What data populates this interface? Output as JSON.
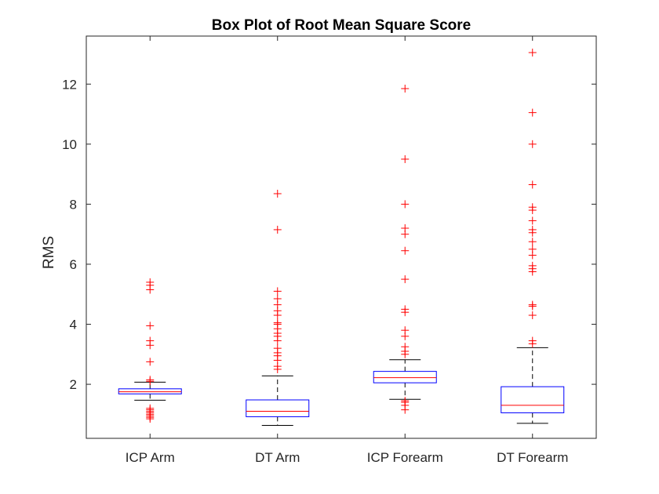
{
  "chart_data": {
    "type": "box",
    "title": "Box Plot of Root Mean Square Score",
    "xlabel": "",
    "ylabel": "RMS",
    "ylim": [
      0.2,
      13.6
    ],
    "yticks": [
      2,
      4,
      6,
      8,
      10,
      12
    ],
    "grid": false,
    "legend": "none",
    "colors": {
      "box": "#0000ff",
      "median": "#ff0000",
      "whisker": "#000000",
      "outlier": "#ff0000",
      "axis": "#262626"
    },
    "categories": [
      "ICP Arm",
      "DT Arm",
      "ICP Forearm",
      "DT Forearm"
    ],
    "boxes": [
      {
        "label": "ICP Arm",
        "whisker_low": 1.47,
        "q1": 1.68,
        "median": 1.75,
        "q3": 1.85,
        "whisker_high": 2.07,
        "outliers": [
          0.85,
          0.9,
          0.95,
          1.0,
          1.05,
          1.1,
          1.15,
          1.2,
          2.1,
          2.15,
          2.75,
          3.3,
          3.45,
          3.95,
          5.15,
          5.3,
          5.4
        ]
      },
      {
        "label": "DT Arm",
        "whisker_low": 0.63,
        "q1": 0.92,
        "median": 1.1,
        "q3": 1.48,
        "whisker_high": 2.28,
        "outliers": [
          2.5,
          2.6,
          2.8,
          2.95,
          3.05,
          3.2,
          3.45,
          3.6,
          3.7,
          3.85,
          4.0,
          4.05,
          4.3,
          4.45,
          4.65,
          4.85,
          5.1,
          7.15,
          8.35
        ]
      },
      {
        "label": "ICP Forearm",
        "whisker_low": 1.5,
        "q1": 2.05,
        "median": 2.22,
        "q3": 2.43,
        "whisker_high": 2.82,
        "outliers": [
          1.15,
          1.3,
          1.4,
          1.45,
          3.0,
          3.1,
          3.25,
          3.6,
          3.8,
          4.4,
          4.5,
          5.5,
          6.45,
          7.0,
          7.2,
          8.0,
          9.5,
          11.85
        ]
      },
      {
        "label": "DT Forearm",
        "whisker_low": 0.7,
        "q1": 1.05,
        "median": 1.3,
        "q3": 1.92,
        "whisker_high": 3.22,
        "outliers": [
          3.35,
          3.45,
          4.3,
          4.6,
          4.65,
          5.75,
          5.85,
          5.95,
          6.3,
          6.5,
          6.75,
          7.05,
          7.15,
          7.45,
          7.8,
          7.9,
          8.65,
          10.0,
          11.05,
          13.05
        ]
      }
    ]
  }
}
